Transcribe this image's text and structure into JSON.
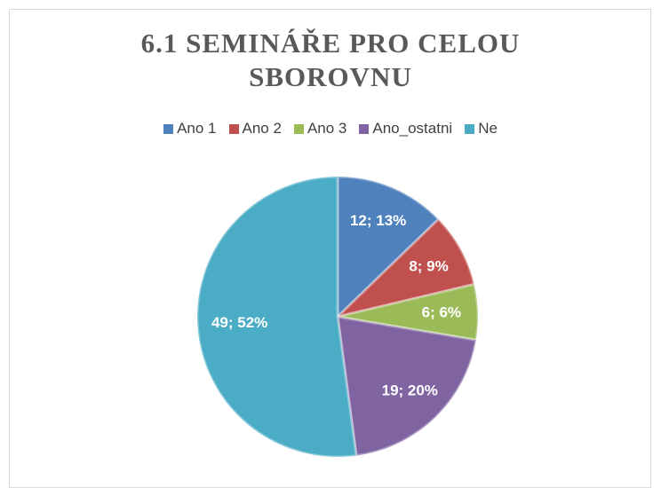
{
  "chart_data": {
    "type": "pie",
    "title": "6.1 SEMINÁŘE PRO CELOU SBOROVNU",
    "categories": [
      "Ano 1",
      "Ano 2",
      "Ano 3",
      "Ano_ostatni",
      "Ne"
    ],
    "values": [
      12,
      8,
      6,
      19,
      49
    ],
    "value_labels": [
      "12; 13%",
      "8; 9%",
      "6; 6%",
      "19; 20%",
      "49; 52%"
    ],
    "colors": [
      "#4f81bd",
      "#c0504d",
      "#9bbb59",
      "#8064a2",
      "#4bacc6"
    ],
    "legend": "top"
  }
}
